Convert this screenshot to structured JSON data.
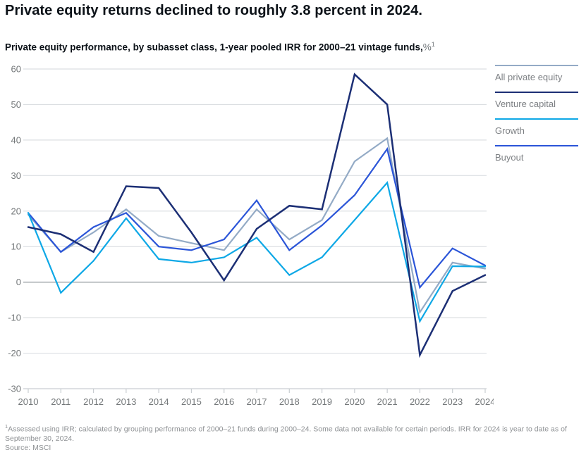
{
  "page": {
    "title": "Private equity returns declined to roughly 3.8 percent in 2024.",
    "subtitle": "Private equity performance, by subasset class, 1-year pooled IRR for 2000–21 vintage funds,",
    "subtitle_unit": "%",
    "subtitle_footnote_marker": "1",
    "footnote_marker": "1",
    "footnote_text": "Assessed using IRR; calculated by grouping performance of 2000–21 funds during 2000–24. Some data not available for certain periods. IRR for 2024 is year to date as of September 30, 2024.",
    "source": "Source: MSCI"
  },
  "chart_data": {
    "type": "line",
    "x": [
      2010,
      2011,
      2012,
      2013,
      2014,
      2015,
      2016,
      2017,
      2018,
      2019,
      2020,
      2021,
      2022,
      2023,
      2024
    ],
    "series": [
      {
        "name": "All private equity",
        "color": "#94abc6",
        "values": [
          19,
          8.5,
          14,
          20.5,
          13,
          11,
          9,
          20.5,
          12,
          17.5,
          34,
          40.5,
          -8.5,
          5.5,
          3.8
        ]
      },
      {
        "name": "Venture capital",
        "color": "#1c2f75",
        "values": [
          15.5,
          13.5,
          8.5,
          27,
          26.5,
          14,
          0.5,
          15,
          21.5,
          20.5,
          58.5,
          50,
          -20.5,
          -2.5,
          2
        ]
      },
      {
        "name": "Growth",
        "color": "#0ea8e6",
        "values": [
          19.5,
          -3,
          6,
          18,
          6.5,
          5.5,
          7,
          12.5,
          2,
          7,
          17.5,
          28,
          -11,
          4.5,
          4.4
        ]
      },
      {
        "name": "Buyout",
        "color": "#2b55d8",
        "values": [
          19.5,
          8.5,
          15.5,
          19.5,
          10,
          9,
          12,
          23,
          9,
          16,
          24.5,
          37.5,
          -1.5,
          9.5,
          4.7
        ]
      }
    ],
    "draw_order": [
      0,
      3,
      2,
      1
    ],
    "yticks": [
      60,
      50,
      40,
      30,
      20,
      10,
      0,
      -10,
      -20,
      -30
    ],
    "ylim": [
      -30,
      60
    ],
    "xlabel": "",
    "ylabel": "",
    "grid": true,
    "legend_position": "right",
    "legend": [
      "All private equity",
      "Venture capital",
      "Growth",
      "Buyout"
    ],
    "colors": {
      "gridline": "#dcdfe2",
      "zero_line": "#9aa0a5",
      "axis_line": "#c9ced2",
      "tick_label": "#737779"
    }
  }
}
